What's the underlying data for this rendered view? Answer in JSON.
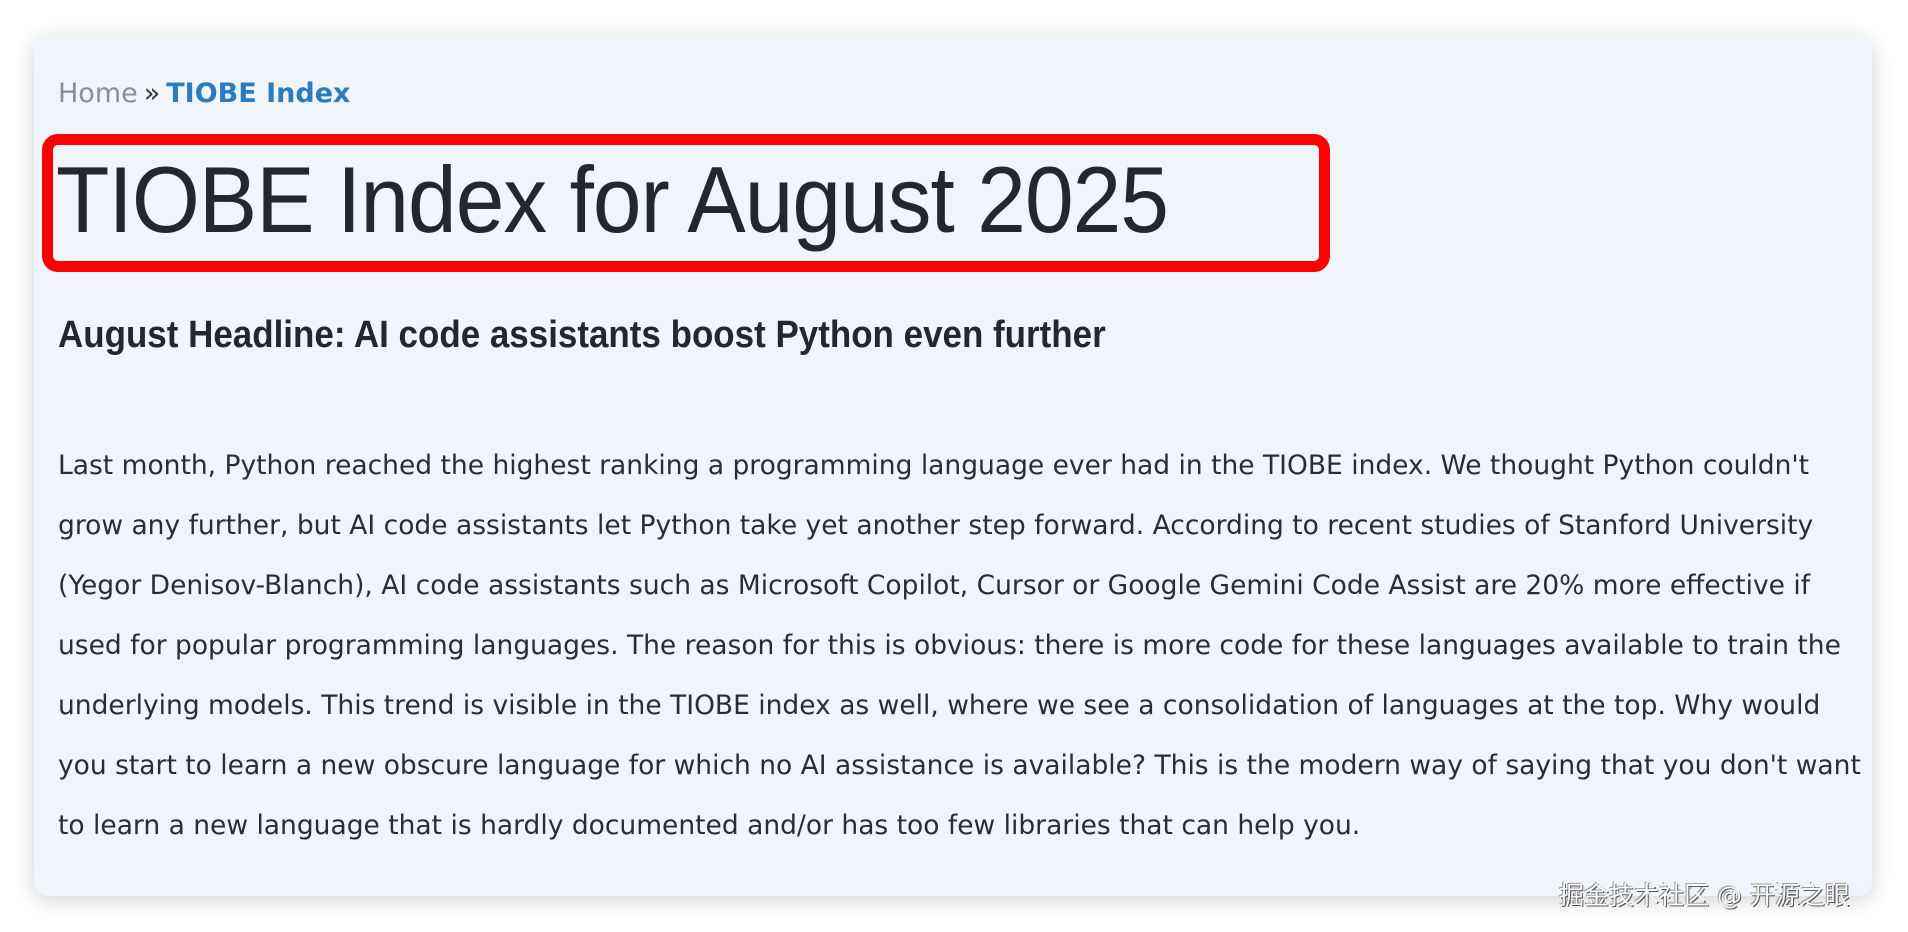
{
  "breadcrumb": {
    "home": "Home",
    "separator": "»",
    "current": "TIOBE Index"
  },
  "page_title": "TIOBE Index for August 2025",
  "headline": "August Headline: AI code assistants boost Python even further",
  "body": "Last month, Python reached the highest ranking a programming language ever had in the TIOBE index. We thought Python couldn't grow any further, but AI code assistants let Python take yet another step forward. According to recent studies of Stanford University (Yegor Denisov-Blanch), AI code assistants such as Microsoft Copilot, Cursor or Google Gemini Code Assist are 20% more effective if used for popular programming languages. The reason for this is obvious: there is more code for these languages available to train the underlying models. This trend is visible in the TIOBE index as well, where we see a consolidation of languages at the top. Why would you start to learn a new obscure language for which no AI assistance is available? This is the modern way of saying that you don't want to learn a new language that is hardly documented and/or has too few libraries that can help you.",
  "watermark": "掘金技术社区 @ 开源之眼",
  "colors": {
    "link": "#2b7bbf",
    "highlight_box": "#ff0000",
    "card_bg": "#f0f5fc",
    "text": "#24282e"
  }
}
